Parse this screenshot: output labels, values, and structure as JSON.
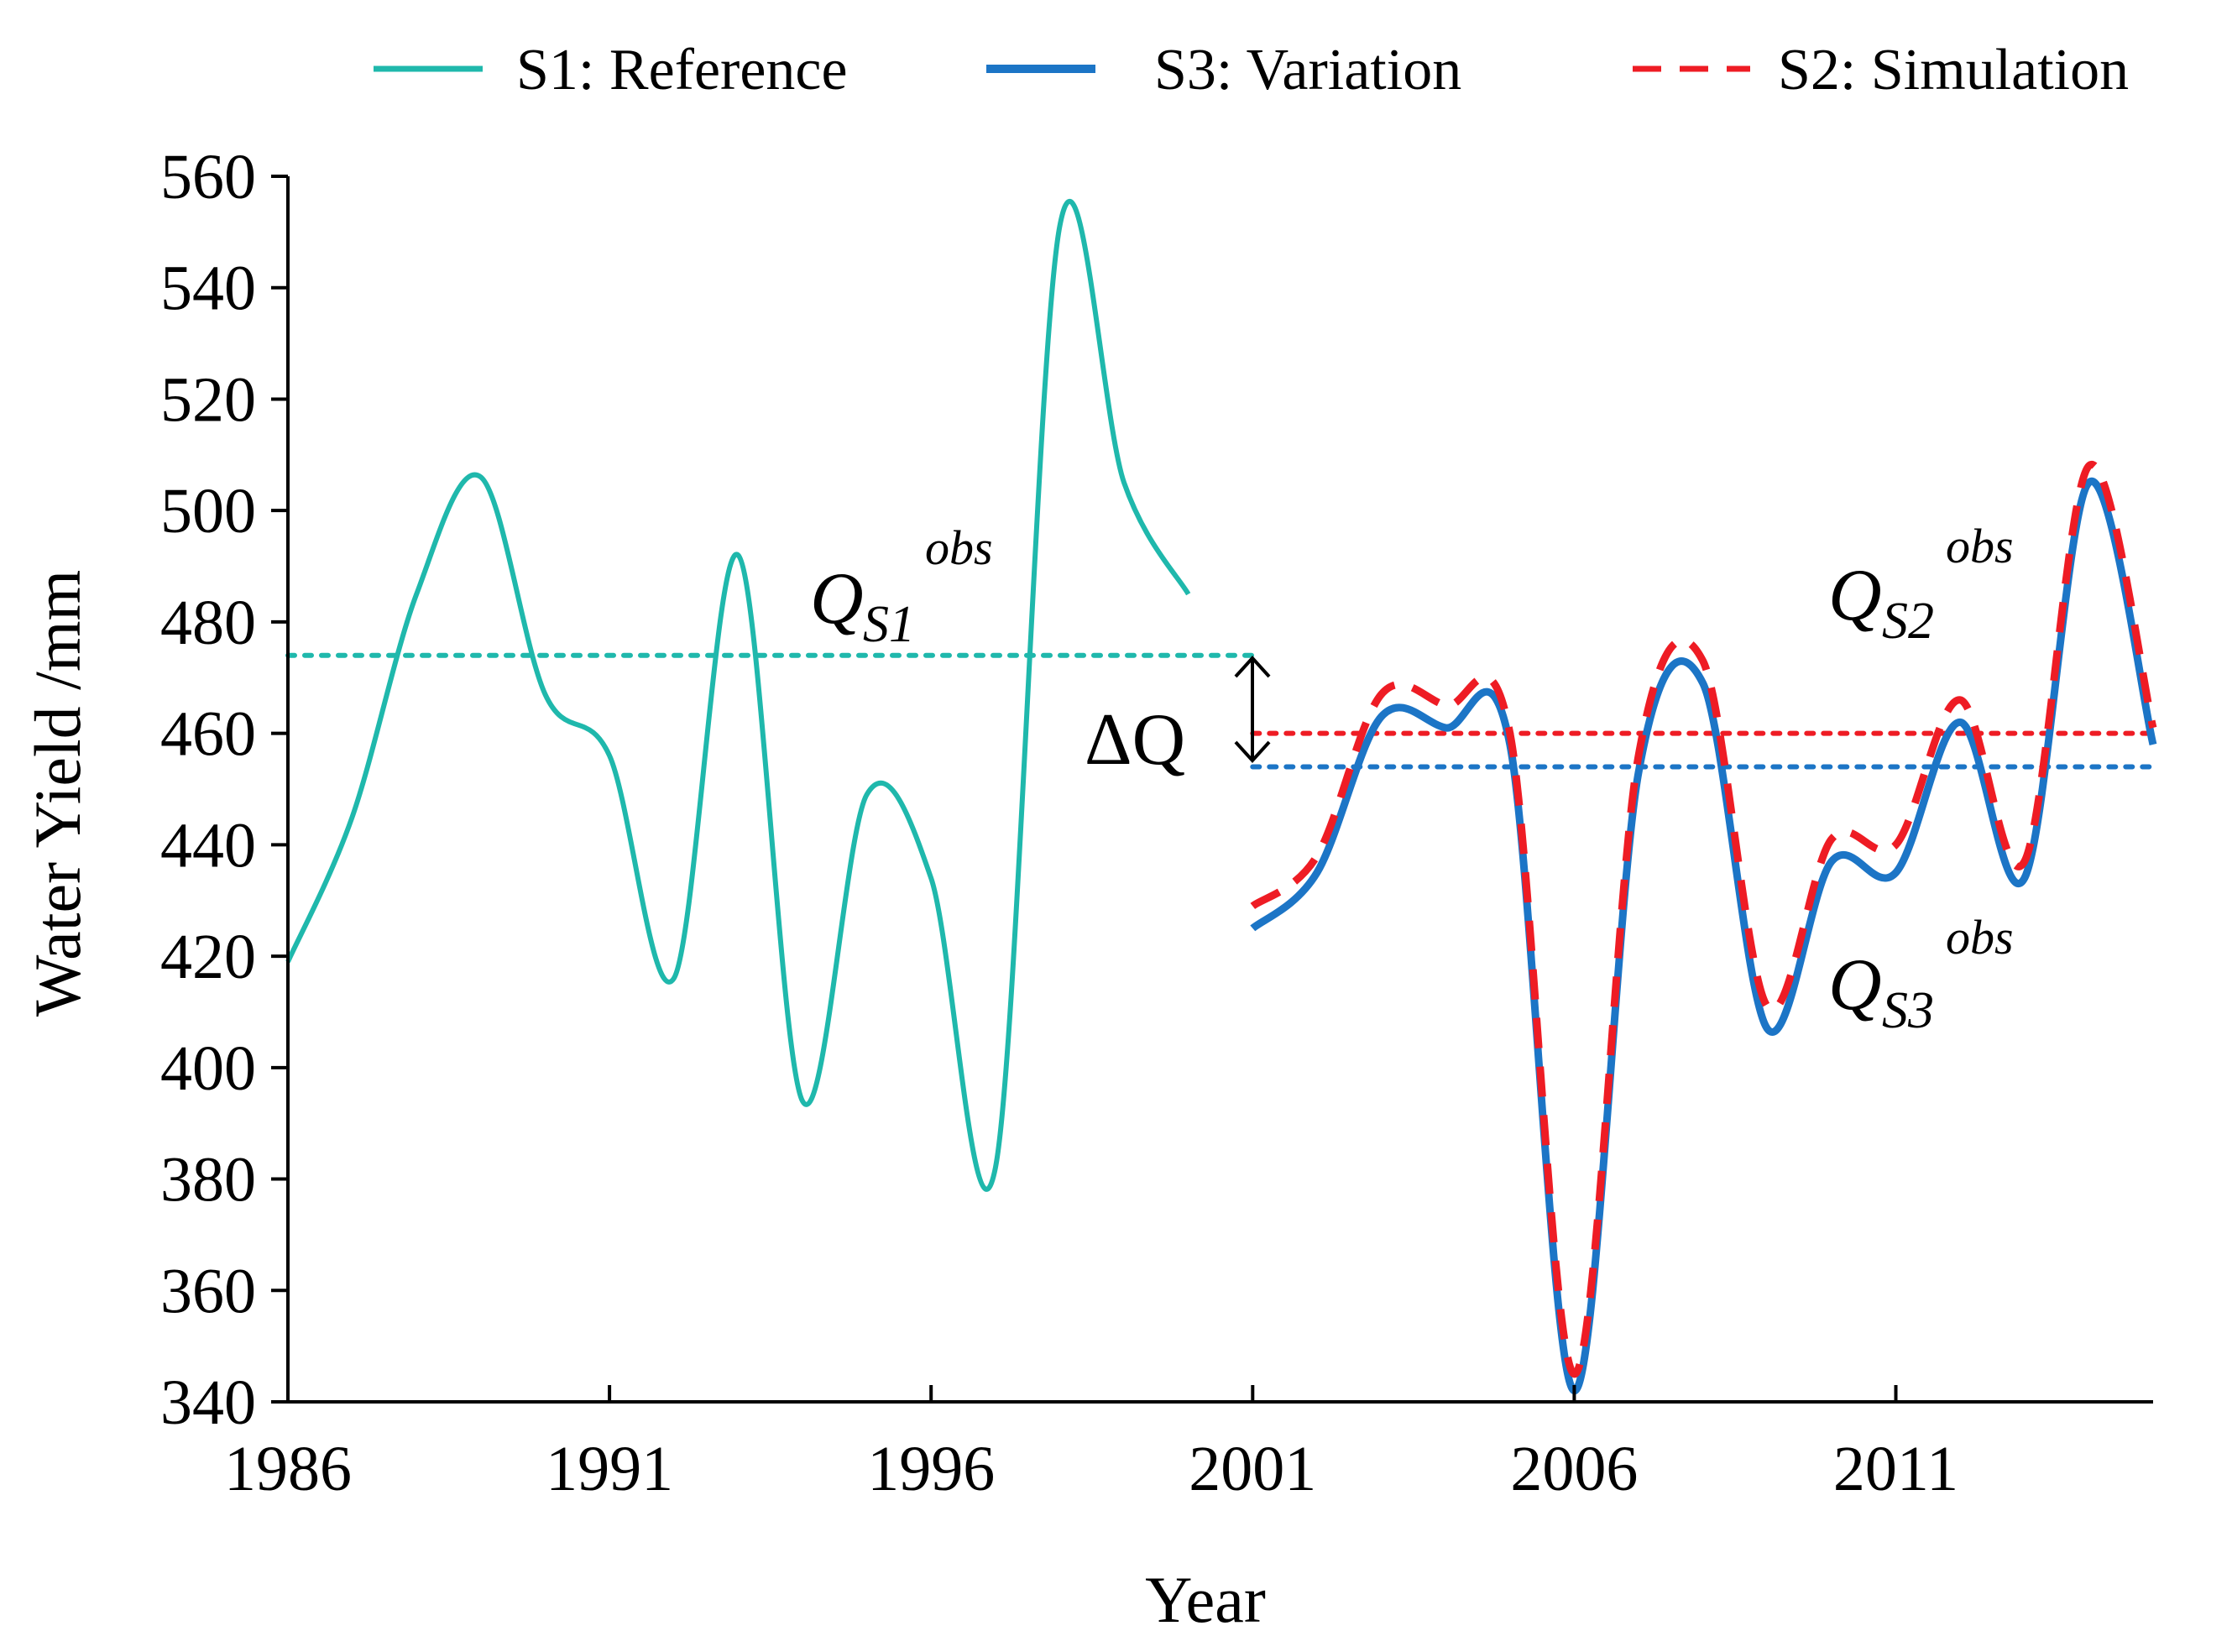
{
  "colors": {
    "s1": "#1fb8ac",
    "s3": "#1c75c6",
    "s2": "#ee1c24",
    "axis": "#000000"
  },
  "legend": [
    {
      "key": "s1",
      "label": "S1: Reference",
      "style": "solid"
    },
    {
      "key": "s3",
      "label": "S3: Variation",
      "style": "solid-thick"
    },
    {
      "key": "s2",
      "label": "S2: Simulation",
      "style": "dashed"
    }
  ],
  "annotations": {
    "qs1": {
      "main": "Q",
      "sub": "S1",
      "sup": "obs"
    },
    "qs2": {
      "main": "Q",
      "sub": "S2",
      "sup": "obs"
    },
    "qs3": {
      "main": "Q",
      "sub": "S3",
      "sup": "obs"
    },
    "delta": "ΔQ"
  },
  "chart_data": {
    "type": "line",
    "title": "",
    "xlabel": "Year",
    "ylabel": "Water Yield /mm",
    "xlim": [
      1986,
      2015
    ],
    "ylim": [
      340,
      560
    ],
    "xticks": [
      1986,
      1991,
      1996,
      2001,
      2006,
      2011
    ],
    "yticks": [
      340,
      360,
      380,
      400,
      420,
      440,
      460,
      480,
      500,
      520,
      540,
      560
    ],
    "series": [
      {
        "key": "s1",
        "name": "S1: Reference",
        "x": [
          1986,
          1987,
          1988,
          1989,
          1990,
          1991,
          1992,
          1993,
          1994,
          1995,
          1996,
          1997,
          1998,
          1999,
          2000
        ],
        "values": [
          419,
          445,
          485,
          506,
          467,
          456,
          416,
          492,
          394,
          449,
          434,
          382,
          551,
          505,
          485
        ]
      },
      {
        "key": "s3",
        "name": "S3: Variation",
        "x": [
          2001,
          2002,
          2003,
          2004,
          2005,
          2006,
          2007,
          2008,
          2009,
          2010,
          2011,
          2012,
          2013,
          2014,
          2015
        ],
        "values": [
          425,
          435,
          463,
          461,
          458,
          342,
          453,
          469,
          407,
          437,
          435,
          462,
          434,
          505,
          458
        ]
      },
      {
        "key": "s2",
        "name": "S2: Simulation",
        "x": [
          2001,
          2002,
          2003,
          2004,
          2005,
          2006,
          2007,
          2008,
          2009,
          2010,
          2011,
          2012,
          2013,
          2014,
          2015
        ],
        "values": [
          429,
          438,
          467,
          465,
          460,
          345,
          456,
          473,
          411,
          441,
          440,
          466,
          437,
          508,
          461
        ]
      }
    ],
    "reference_lines": [
      {
        "key": "s1",
        "label": "Q_S1 obs",
        "value": 474,
        "x_start": 1986,
        "x_end": 2001
      },
      {
        "key": "s2",
        "label": "Q_S2 obs",
        "value": 460,
        "x_start": 2001,
        "x_end": 2015
      },
      {
        "key": "s3",
        "label": "Q_S3 obs",
        "value": 454,
        "x_start": 2001,
        "x_end": 2015
      }
    ],
    "delta_q": {
      "x": 2001,
      "from": 474,
      "to": 454
    }
  }
}
